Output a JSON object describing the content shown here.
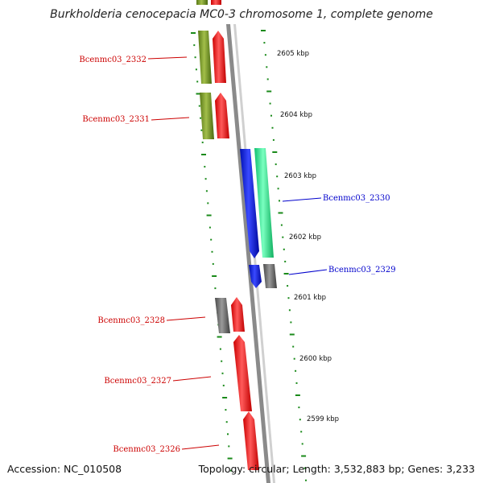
{
  "title": "Burkholderia cenocepacia MC0-3 chromosome 1, complete genome",
  "footer": {
    "accession": "Accession: NC_010508",
    "summary": "Topology: circular; Length: 3,532,883 bp; Genes: 3,233"
  },
  "colors": {
    "backbone": "#8c8c8c",
    "tick": "#1a8a1a",
    "left_label": "#cc0000",
    "right_label": "#0000cc",
    "gene_olive": "#7a9a2a",
    "gene_red": "#ff1a1a",
    "gene_gray": "#707070",
    "gene_blue": "#0a1aff",
    "gene_aqua": "#2aff9a"
  },
  "genome_map": {
    "scale_labels": [
      "2605 kbp",
      "2604 kbp",
      "2603 kbp",
      "2602 kbp",
      "2601 kbp",
      "2600 kbp",
      "2599 kbp"
    ],
    "gene_labels_left": [
      "Bcenmc03_2332",
      "Bcenmc03_2331",
      "Bcenmc03_2328",
      "Bcenmc03_2327",
      "Bcenmc03_2326"
    ],
    "gene_labels_right": [
      "Bcenmc03_2330",
      "Bcenmc03_2329"
    ],
    "features": [
      {
        "track": "left-outer",
        "color": "olive"
      },
      {
        "track": "left-inner",
        "color": "red"
      },
      {
        "track": "left-outer",
        "color": "olive"
      },
      {
        "track": "left-inner",
        "color": "red"
      },
      {
        "track": "right-inner",
        "color": "blue"
      },
      {
        "track": "right-outer",
        "color": "aqua"
      },
      {
        "track": "right-inner",
        "color": "blue"
      },
      {
        "track": "right-outer",
        "color": "gray"
      },
      {
        "track": "left-outer",
        "color": "gray"
      },
      {
        "track": "left-inner",
        "color": "red"
      },
      {
        "track": "left-inner",
        "color": "red"
      },
      {
        "track": "left-inner",
        "color": "red"
      },
      {
        "track": "left-outer",
        "color": "olive"
      },
      {
        "track": "left-inner",
        "color": "red"
      }
    ]
  }
}
